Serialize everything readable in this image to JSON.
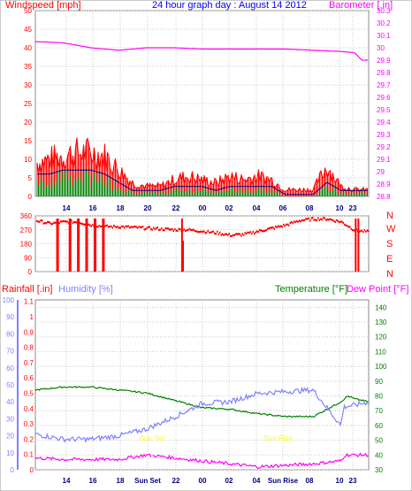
{
  "chart_data": [
    {
      "type": "line",
      "title": "24 hour graph day : August 14 2012",
      "left_axis_label": "Windspeed [mph]",
      "right_axis_label": "Barometer [.in]",
      "x_ticks": [
        "14",
        "16",
        "18",
        "20",
        "22",
        "00",
        "02",
        "04",
        "06",
        "08",
        "10",
        "23"
      ],
      "left_ticks": [
        "0",
        "5",
        "10",
        "15",
        "20",
        "25",
        "30",
        "35",
        "40",
        "45",
        "50"
      ],
      "right_ticks": [
        "28.8",
        "28.9",
        "29",
        "29.1",
        "29.2",
        "29.3",
        "29.4",
        "29.5",
        "29.6",
        "29.7",
        "29.8",
        "29.9",
        "30",
        "30.1",
        "30.2",
        "30.3"
      ],
      "ylim_left": [
        0,
        50
      ],
      "ylim_right": [
        28.8,
        30.3
      ],
      "grid": true,
      "colors": {
        "gust": "#ff0000",
        "avg": "#008000",
        "trend": "#000080",
        "barometer": "#ff00ff"
      },
      "barometer": {
        "hours": [
          0,
          2,
          4,
          6,
          8,
          10,
          12,
          14,
          16,
          18,
          20,
          22,
          23,
          23.5,
          24
        ],
        "values": [
          30.05,
          30.04,
          30.0,
          29.98,
          30.0,
          30.0,
          29.99,
          29.99,
          29.99,
          29.99,
          29.98,
          29.97,
          29.96,
          29.9,
          29.9
        ]
      },
      "wind_gust_envelope": {
        "hours": [
          0,
          1,
          2,
          3,
          4,
          5,
          6,
          7,
          8,
          9,
          10,
          11,
          12,
          13,
          14,
          15,
          16,
          17,
          18,
          19,
          20,
          21,
          22,
          23,
          24
        ],
        "values": [
          10,
          11,
          12,
          13,
          13,
          12,
          8,
          4,
          3,
          3,
          5,
          6,
          5,
          4,
          6,
          5,
          6,
          5,
          2,
          2,
          2,
          9,
          3,
          2,
          2
        ]
      },
      "wind_avg_envelope": {
        "hours": [
          0,
          1,
          2,
          3,
          4,
          5,
          6,
          7,
          8,
          9,
          10,
          11,
          12,
          13,
          14,
          15,
          16,
          17,
          18,
          19,
          20,
          21,
          22,
          23,
          24
        ],
        "values": [
          5,
          5,
          6,
          6,
          6,
          5,
          3,
          1,
          1,
          1,
          2,
          2,
          2,
          1,
          2,
          2,
          2,
          2,
          0,
          0,
          0,
          3,
          1,
          1,
          1
        ]
      }
    },
    {
      "type": "scatter",
      "title": "Wind direction",
      "left_ticks": [
        "0",
        "90",
        "180",
        "270",
        "360"
      ],
      "right_ticks": [
        "N",
        "W",
        "S",
        "E",
        "N"
      ],
      "x_ticks": [],
      "ylim": [
        0,
        360
      ],
      "grid": true,
      "direction": {
        "hours": [
          0,
          1,
          2,
          3,
          4,
          5,
          6,
          7,
          8,
          9,
          10,
          11,
          12,
          13,
          14,
          15,
          16,
          17,
          18,
          19,
          20,
          21,
          22,
          23,
          24
        ],
        "values": [
          330,
          310,
          320,
          320,
          300,
          290,
          290,
          285,
          280,
          275,
          270,
          270,
          260,
          250,
          235,
          240,
          260,
          280,
          300,
          330,
          340,
          340,
          320,
          265,
          255
        ]
      },
      "north_spikes_hours": [
        1.5,
        2.4,
        3.0,
        3.6,
        4.2,
        4.8,
        10.5,
        23.0,
        23.2
      ]
    },
    {
      "type": "line",
      "left_axis_label": "Rainfall [.in]",
      "left_axis_label2": "Humidity [%]",
      "right_axis_label": "Temperature [°F]",
      "right_axis_label2": "Dew Point [°F]",
      "x_ticks": [
        "14",
        "16",
        "18",
        "Sun Set",
        "22",
        "00",
        "02",
        "04",
        "Sun Rise",
        "08",
        "10",
        "23"
      ],
      "rain_ticks": [
        "0",
        "0.1",
        "0.2",
        "0.3",
        "0.4",
        "0.5",
        "0.6",
        "0.7",
        "0.8",
        "0.9",
        "1",
        "1.1"
      ],
      "humidity_ticks": [
        "0",
        "10",
        "20",
        "30",
        "40",
        "50",
        "60",
        "70",
        "80",
        "90",
        "100"
      ],
      "temp_ticks": [
        "30",
        "40",
        "50",
        "60",
        "70",
        "80",
        "90",
        "100",
        "110",
        "120",
        "130",
        "140"
      ],
      "ylim_temp": [
        30,
        145
      ],
      "ylim_humidity": [
        0,
        100
      ],
      "annotations": [
        {
          "text": "Sun Set",
          "hour": 8.4
        },
        {
          "text": "Sun Rise",
          "hour": 17.5
        }
      ],
      "grid": true,
      "colors": {
        "temperature": "#008000",
        "humidity": "#8080ff",
        "dewpoint": "#ff00ff",
        "markers": "#ffff00"
      },
      "temperature": {
        "hours": [
          0,
          2,
          4,
          6,
          8,
          10,
          12,
          14,
          16,
          18,
          20,
          22,
          22.5,
          23,
          24
        ],
        "values": [
          84,
          86,
          86,
          84,
          82,
          77,
          72,
          71,
          68,
          66,
          66,
          76,
          80,
          78,
          76
        ]
      },
      "humidity": {
        "hours": [
          0,
          2,
          4,
          6,
          8,
          10,
          12,
          14,
          16,
          18,
          20,
          22,
          22.2,
          23,
          24
        ],
        "values": [
          21,
          18,
          18,
          20,
          24,
          31,
          39,
          40,
          45,
          46,
          47,
          26,
          37,
          38,
          40
        ]
      },
      "dewpoint": {
        "hours": [
          0,
          2,
          4,
          6,
          8,
          10,
          12,
          14,
          16,
          18,
          20,
          22,
          22.3,
          23,
          24
        ],
        "values": [
          38,
          37,
          37,
          37,
          40,
          38,
          36,
          34,
          32,
          33,
          34,
          36,
          40,
          40,
          40
        ]
      }
    }
  ]
}
